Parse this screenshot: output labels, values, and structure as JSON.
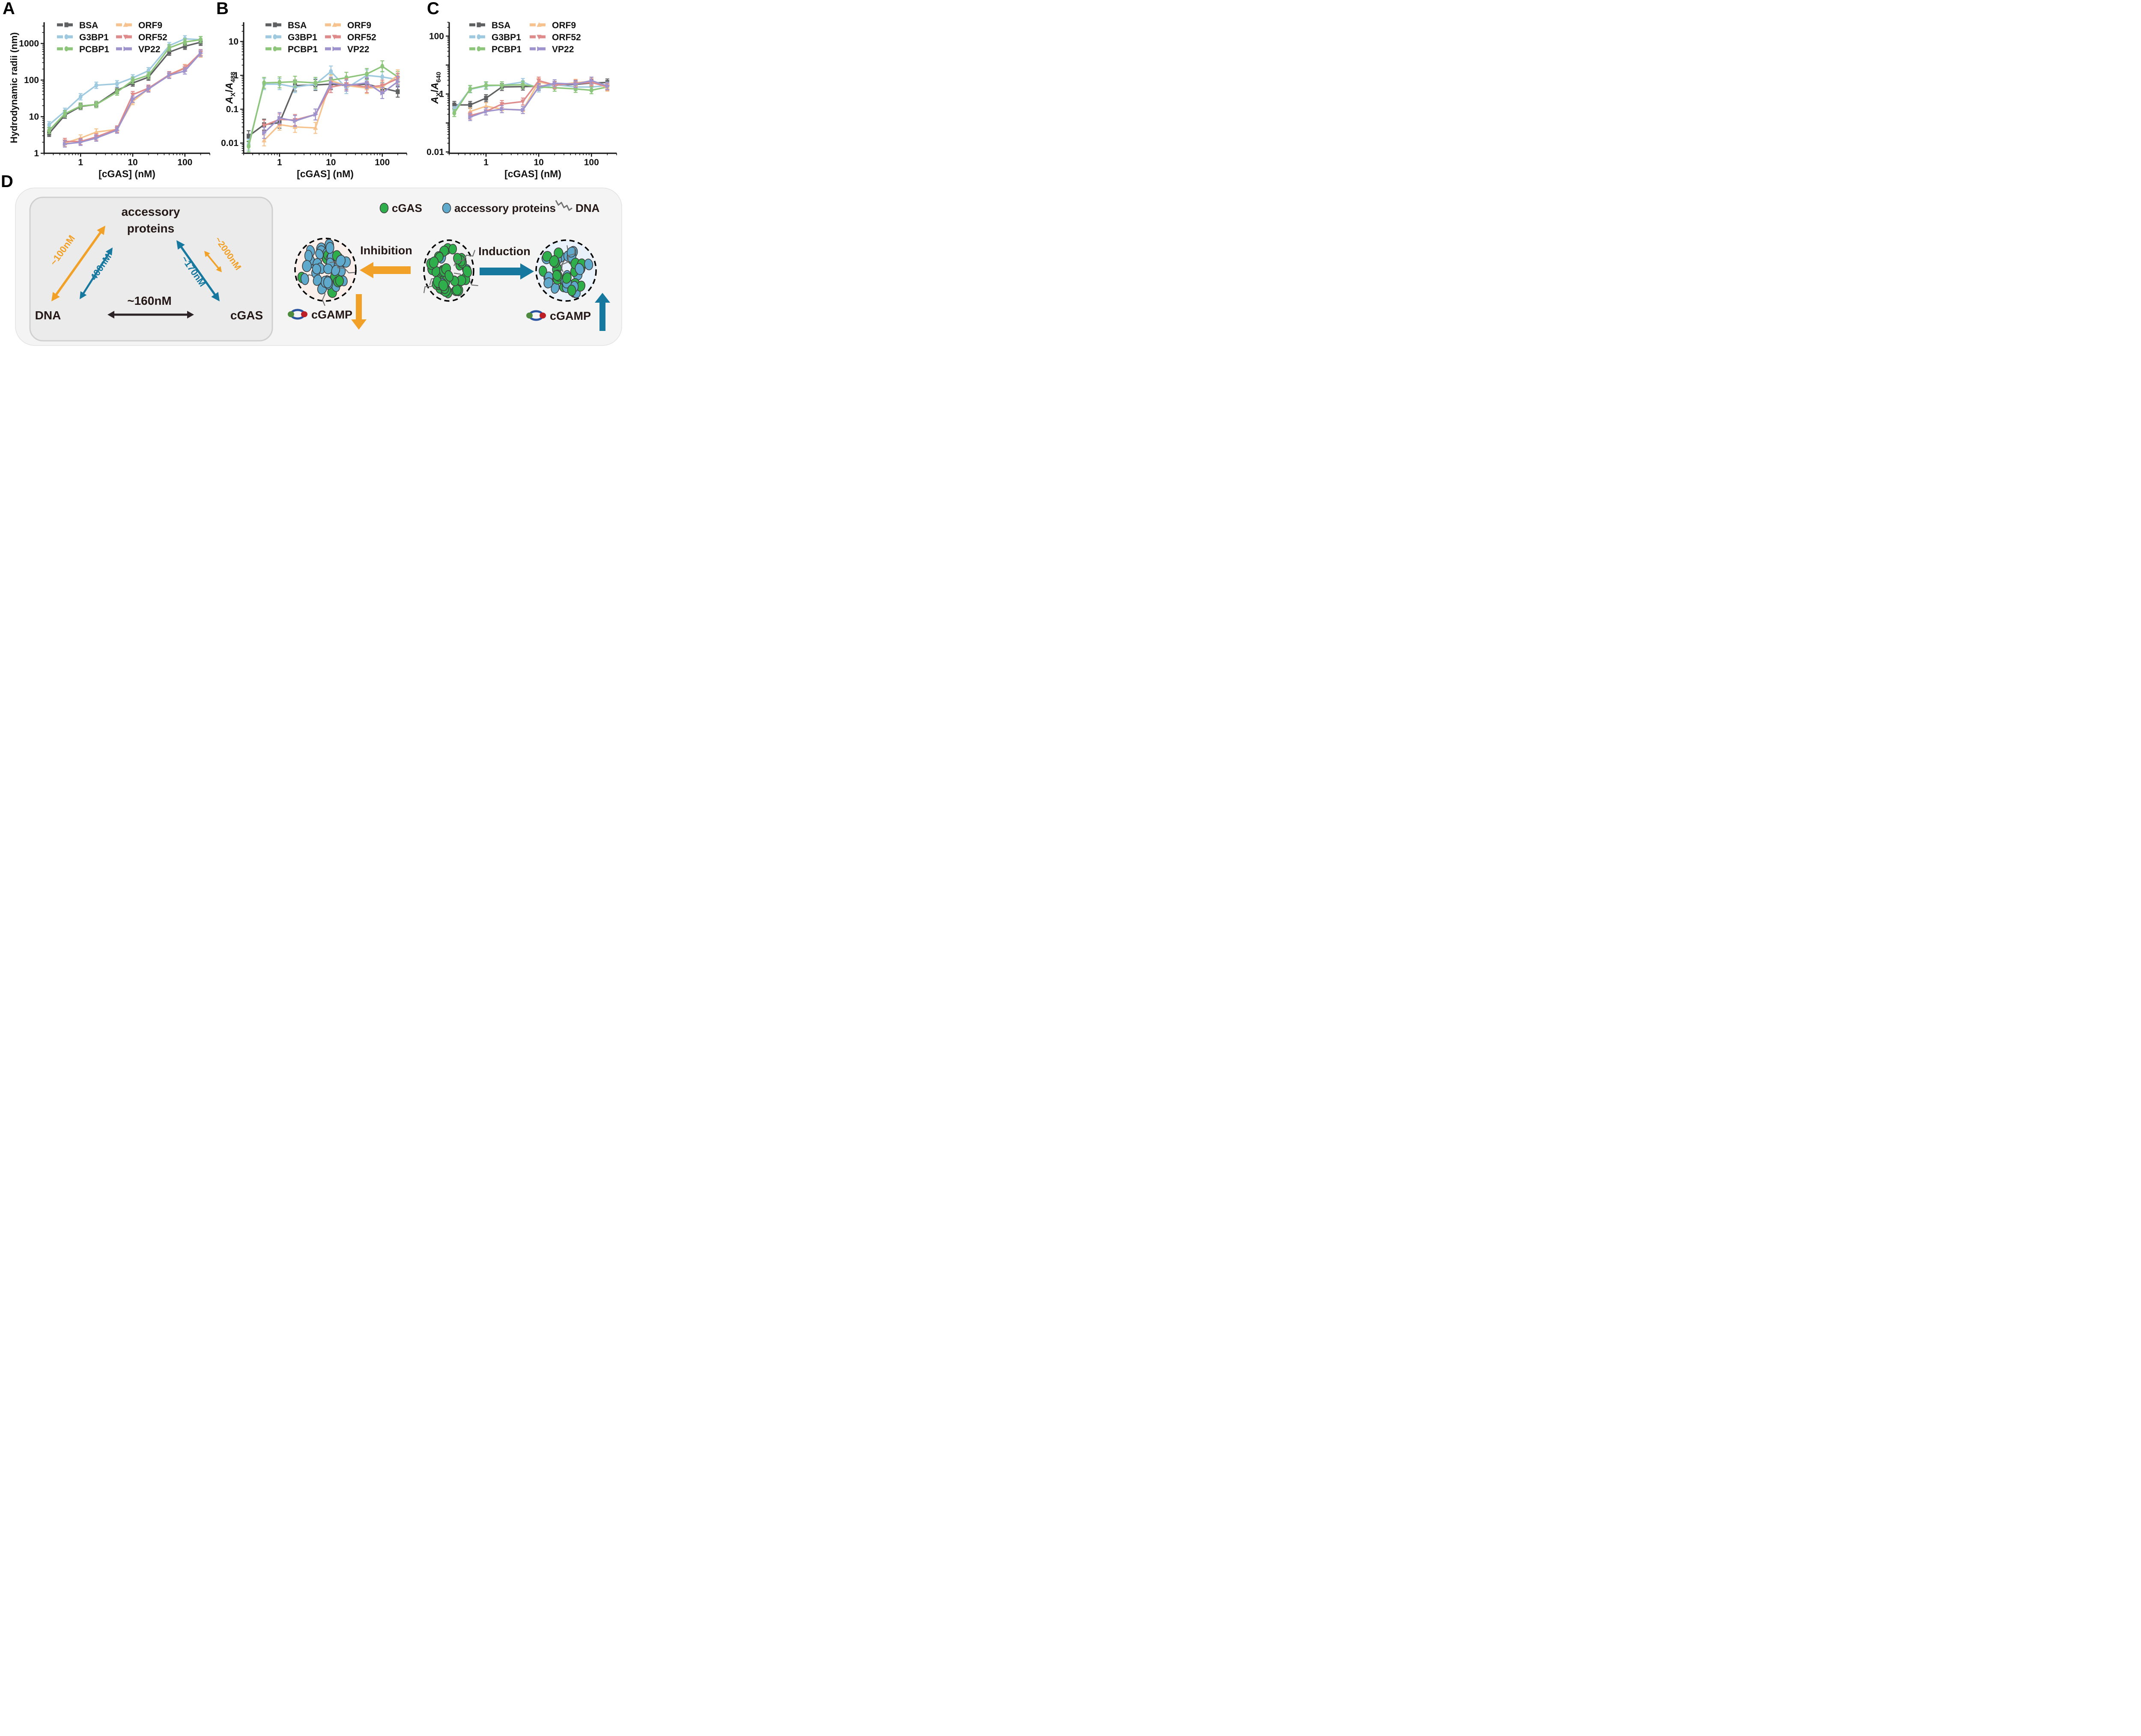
{
  "figure": {
    "panel_labels": {
      "A": "A",
      "B": "B",
      "C": "C",
      "D": "D"
    }
  },
  "chart_data": [
    {
      "id": "A",
      "type": "line",
      "xlabel": "[cGAS] (nM)",
      "ylabel": "Hydrodynamic radii (nm)",
      "x": [
        0.25,
        0.5,
        1,
        2,
        5,
        10,
        20,
        50,
        100,
        200
      ],
      "xlim": [
        0.2,
        300
      ],
      "ylim": [
        1,
        3800
      ],
      "xticks_labeled": [
        1,
        10,
        100
      ],
      "yticks_labeled": [
        1,
        10,
        100,
        1000
      ],
      "err_frac": 0.22,
      "series": [
        {
          "name": "BSA",
          "color": "#5F6062",
          "marker": "square",
          "values": [
            3.5,
            11,
            19,
            21.5,
            52,
            83,
            120,
            580,
            840,
            1080
          ]
        },
        {
          "name": "G3BP1",
          "color": "#9FC9DF",
          "marker": "ellipse",
          "values": [
            6,
            14,
            35,
            72,
            79,
            115,
            180,
            870,
            1340,
            1270
          ]
        },
        {
          "name": "PCBP1",
          "color": "#8DC57B",
          "marker": "ellipse",
          "values": [
            4.2,
            12,
            19.5,
            21.5,
            47,
            98,
            135,
            760,
            1100,
            1270
          ]
        },
        {
          "name": "ORF9",
          "color": "#F6C28D",
          "marker": "triangle-up",
          "values": [
            null,
            1.9,
            2.6,
            3.8,
            4.5,
            26,
            58,
            140,
            220,
            510
          ]
        },
        {
          "name": "ORF52",
          "color": "#E08B8B",
          "marker": "triangle-down",
          "values": [
            null,
            2.1,
            2.1,
            2.8,
            4.6,
            40,
            60,
            140,
            210,
            560
          ]
        },
        {
          "name": "VP22",
          "color": "#9E93CC",
          "marker": "triangle-right",
          "values": [
            null,
            1.8,
            2.0,
            2.6,
            4.3,
            30,
            57,
            135,
            178,
            545
          ]
        }
      ]
    },
    {
      "id": "B",
      "type": "line",
      "xlabel": "[cGAS] (nM)",
      "ylabel_rich": {
        "num": "A",
        "num_sub": "X",
        "den": "A",
        "den_sub": "488"
      },
      "x": [
        0.25,
        0.5,
        1,
        2,
        5,
        10,
        20,
        50,
        100,
        200
      ],
      "xlim": [
        0.2,
        300
      ],
      "ylim": [
        0.005,
        37
      ],
      "xticks_labeled": [
        1,
        10,
        100
      ],
      "yticks_labeled": [
        0.01,
        0.1,
        1,
        10
      ],
      "err_frac": 0.45,
      "series": [
        {
          "name": "BSA",
          "color": "#5F6062",
          "marker": "square",
          "values": [
            0.016,
            0.035,
            0.04,
            0.5,
            0.52,
            0.55,
            0.5,
            0.55,
            0.42,
            0.33
          ]
        },
        {
          "name": "G3BP1",
          "color": "#9FC9DF",
          "marker": "ellipse",
          "values": [
            0.009,
            0.55,
            0.55,
            0.45,
            0.55,
            1.3,
            0.42,
            1.0,
            0.9,
            0.75
          ]
        },
        {
          "name": "PCBP1",
          "color": "#8DC57B",
          "marker": "ellipse",
          "values": [
            0.008,
            0.6,
            0.62,
            0.65,
            0.6,
            0.72,
            0.85,
            1.1,
            1.85,
            0.9
          ]
        },
        {
          "name": "ORF9",
          "color": "#F6C28D",
          "marker": "triangle-up",
          "values": [
            null,
            0.012,
            0.035,
            0.03,
            0.028,
            0.7,
            0.5,
            0.42,
            0.45,
            1.0
          ]
        },
        {
          "name": "ORF52",
          "color": "#E08B8B",
          "marker": "triangle-down",
          "values": [
            null,
            0.033,
            0.05,
            0.048,
            0.07,
            0.45,
            0.55,
            0.45,
            0.5,
            0.8
          ]
        },
        {
          "name": "VP22",
          "color": "#9E93CC",
          "marker": "triangle-right",
          "values": [
            null,
            0.02,
            0.055,
            0.045,
            0.07,
            0.6,
            0.5,
            0.6,
            0.3,
            0.65
          ]
        }
      ]
    },
    {
      "id": "C",
      "type": "line",
      "xlabel": "[cGAS] (nM)",
      "ylabel_rich": {
        "num": "A",
        "num_sub": "X",
        "den": "A",
        "den_sub": "640"
      },
      "x": [
        0.25,
        0.5,
        1,
        2,
        5,
        10,
        20,
        50,
        100,
        200
      ],
      "xlim": [
        0.2,
        300
      ],
      "ylim": [
        0.009,
        300
      ],
      "xticks_labeled": [
        1,
        10,
        100
      ],
      "yticks_labeled": [
        0.01,
        1,
        100
      ],
      "err_frac": 0.32,
      "series": [
        {
          "name": "BSA",
          "color": "#5F6062",
          "marker": "square",
          "values": [
            0.42,
            0.42,
            0.72,
            1.75,
            1.8,
            1.85,
            2.0,
            2.15,
            2.4,
            2.5
          ]
        },
        {
          "name": "G3BP1",
          "color": "#9FC9DF",
          "marker": "ellipse",
          "values": [
            0.28,
            1.45,
            1.9,
            2.0,
            2.6,
            1.55,
            2.1,
            1.75,
            1.75,
            1.95
          ]
        },
        {
          "name": "PCBP1",
          "color": "#8DC57B",
          "marker": "ellipse",
          "values": [
            0.22,
            1.5,
            2.0,
            2.0,
            2.1,
            1.75,
            1.65,
            1.5,
            1.35,
            1.75
          ]
        },
        {
          "name": "ORF9",
          "color": "#F6C28D",
          "marker": "triangle-up",
          "values": [
            null,
            0.25,
            0.38,
            0.3,
            0.28,
            2.6,
            2.05,
            2.45,
            2.75,
            1.65
          ]
        },
        {
          "name": "ORF52",
          "color": "#E08B8B",
          "marker": "triangle-down",
          "values": [
            null,
            0.18,
            0.25,
            0.45,
            0.55,
            2.9,
            2.05,
            2.3,
            2.5,
            1.8
          ]
        },
        {
          "name": "VP22",
          "color": "#9E93CC",
          "marker": "triangle-right",
          "values": [
            null,
            0.16,
            0.25,
            0.3,
            0.28,
            1.75,
            2.35,
            2.2,
            2.9,
            1.9
          ]
        }
      ]
    }
  ],
  "diagram": {
    "kd_map": {
      "node_top_line1": "accessory",
      "node_top_line2": "proteins",
      "node_left": "DNA",
      "node_right": "cGAS",
      "arrow_labels": {
        "dna_accessory_orange": "~100nM",
        "dna_accessory_teal": "~400nM",
        "cgas_accessory_teal": "~170nM",
        "cgas_accessory_orange": "~2000nM",
        "dna_cgas_black": "~160nM"
      }
    },
    "legend": [
      {
        "swatch": "green-ellipse",
        "label": "cGAS"
      },
      {
        "swatch": "blue-ellipse",
        "label": "accessory proteins"
      },
      {
        "swatch": "dna-squiggle",
        "label": "DNA"
      }
    ],
    "process": {
      "inhibition": "Inhibition",
      "induction": "Induction",
      "cgamp_left": "cGAMP",
      "cgamp_right": "cGAMP"
    },
    "condensates": [
      {
        "id": "accessory-rich",
        "fill": "#FBEFEB",
        "green_ratio": 0.16,
        "count": 46
      },
      {
        "id": "cgas-rich",
        "fill": "#F0F0F0",
        "green_ratio": 0.86,
        "count": 42
      },
      {
        "id": "mixed",
        "fill": "#E9F2FA",
        "green_ratio": 0.62,
        "count": 44
      }
    ],
    "colors": {
      "orange": "#F1A128",
      "teal": "#16789F",
      "black_arrow": "#2B2326",
      "text": "#231815",
      "blob_green": "#2FAE4C",
      "blob_blue": "#5EA9CC",
      "blob_outline": "#3F3F3F",
      "squiggle": "#6F6F6F",
      "cgamp_blue": "#2A53A0",
      "cgamp_green": "#4E8B3E",
      "cgamp_red": "#BC1F26",
      "outer_box": "#F4F4F4",
      "inner_box": "#EBEBEB",
      "inner_border": "#CFCFCF"
    }
  }
}
